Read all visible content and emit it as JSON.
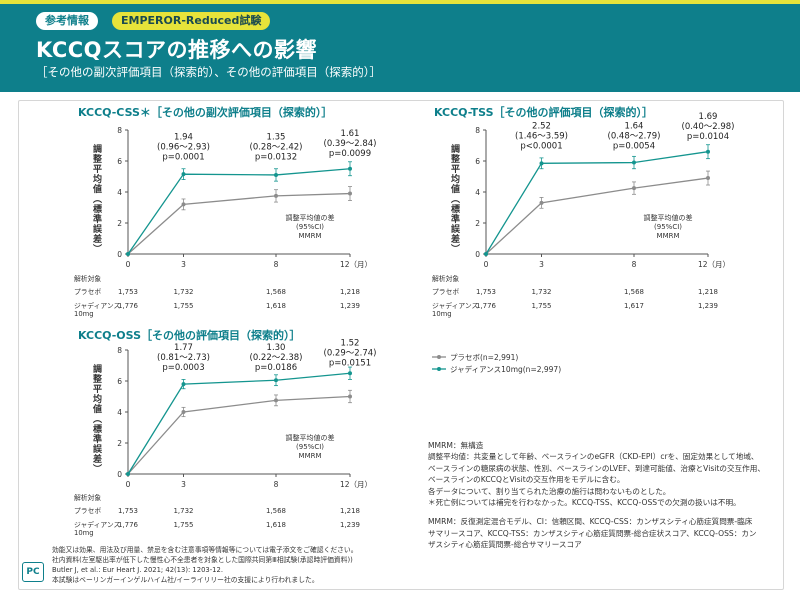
{
  "header": {
    "badge_info": "参考情報",
    "badge_trial": "EMPEROR-Reduced試験",
    "title": "KCCQスコアの推移への影響",
    "subtitle": "［その他の副次評価項目（探索的）、その他の評価項目（探索的）］"
  },
  "legend": {
    "placebo": "プラセボ(n=2,991)",
    "jardiance": "ジャディアンス10mg(n=2,997)"
  },
  "colors": {
    "teal": "#14958f",
    "gray": "#8c8c8c",
    "header": "#0e7f8b",
    "yellow": "#e6e33a"
  },
  "chart_data": [
    {
      "id": "css",
      "type": "line",
      "title": "KCCQ-CSS＊［その他の副次評価項目（探索的）］",
      "ylabel": "調整平均値（標準誤差）",
      "xlabel": "",
      "x": [
        0,
        3,
        8,
        12
      ],
      "x_tick_labels": [
        "0",
        "3",
        "8",
        "12（月）"
      ],
      "ylim": [
        0,
        8
      ],
      "y_ticks": [
        0,
        2,
        4,
        6,
        8
      ],
      "series": [
        {
          "name": "プラセボ",
          "values": [
            0,
            3.2,
            3.75,
            3.9
          ],
          "se": [
            0,
            0.35,
            0.4,
            0.45
          ]
        },
        {
          "name": "ジャディアンス10mg",
          "values": [
            0,
            5.15,
            5.1,
            5.5
          ],
          "se": [
            0,
            0.35,
            0.4,
            0.45
          ]
        }
      ],
      "annotations": [
        {
          "x": 3,
          "y": 6.5,
          "lines": [
            "1.94",
            "(0.96～2.93)",
            "p=0.0001"
          ]
        },
        {
          "x": 8,
          "y": 6.5,
          "lines": [
            "1.35",
            "(0.28～2.42)",
            "p=0.0132"
          ]
        },
        {
          "x": 12,
          "y": 6.7,
          "lines": [
            "1.61",
            "(0.39～2.84)",
            "p=0.0099"
          ]
        }
      ],
      "method_note": [
        "調整平均値の差",
        "(95%CI)",
        "MMRM"
      ],
      "analysis_label": "解析対象",
      "n_rows": [
        {
          "label": [
            "プラセボ"
          ],
          "values": [
            "1,753",
            "1,732",
            "1,568",
            "1,218"
          ]
        },
        {
          "label": [
            "ジャディアンス",
            "10mg"
          ],
          "values": [
            "1,776",
            "1,755",
            "1,618",
            "1,239"
          ]
        }
      ]
    },
    {
      "id": "tss",
      "type": "line",
      "title": "KCCQ-TSS［その他の評価項目（探索的）］",
      "ylabel": "調整平均値（標準誤差）",
      "xlabel": "",
      "x": [
        0,
        3,
        8,
        12
      ],
      "x_tick_labels": [
        "0",
        "3",
        "8",
        "12（月）"
      ],
      "ylim": [
        0,
        8
      ],
      "y_ticks": [
        0,
        2,
        4,
        6,
        8
      ],
      "series": [
        {
          "name": "プラセボ",
          "values": [
            0,
            3.3,
            4.25,
            4.9
          ],
          "se": [
            0,
            0.35,
            0.4,
            0.45
          ]
        },
        {
          "name": "ジャディアンス10mg",
          "values": [
            0,
            5.85,
            5.9,
            6.6
          ],
          "se": [
            0,
            0.35,
            0.4,
            0.45
          ]
        }
      ],
      "annotations": [
        {
          "x": 3,
          "y": 7.2,
          "lines": [
            "2.52",
            "(1.46～3.59)",
            "p<0.0001"
          ]
        },
        {
          "x": 8,
          "y": 7.2,
          "lines": [
            "1.64",
            "(0.48～2.79)",
            "p=0.0054"
          ]
        },
        {
          "x": 12,
          "y": 7.8,
          "lines": [
            "1.69",
            "(0.40～2.98)",
            "p=0.0104"
          ]
        }
      ],
      "method_note": [
        "調整平均値の差",
        "(95%CI)",
        "MMRM"
      ],
      "analysis_label": "解析対象",
      "n_rows": [
        {
          "label": [
            "プラセボ"
          ],
          "values": [
            "1,753",
            "1,732",
            "1,568",
            "1,218"
          ]
        },
        {
          "label": [
            "ジャディアンス",
            "10mg"
          ],
          "values": [
            "1,776",
            "1,755",
            "1,617",
            "1,239"
          ]
        }
      ]
    },
    {
      "id": "oss",
      "type": "line",
      "title": "KCCQ-OSS［その他の評価項目（探索的）］",
      "ylabel": "調整平均値（標準誤差）",
      "xlabel": "",
      "x": [
        0,
        3,
        8,
        12
      ],
      "x_tick_labels": [
        "0",
        "3",
        "8",
        "12（月）"
      ],
      "ylim": [
        0,
        8
      ],
      "y_ticks": [
        0,
        2,
        4,
        6,
        8
      ],
      "series": [
        {
          "name": "プラセボ",
          "values": [
            0,
            4.0,
            4.75,
            5.0
          ],
          "se": [
            0,
            0.3,
            0.35,
            0.4
          ]
        },
        {
          "name": "ジャディアンス10mg",
          "values": [
            0,
            5.8,
            6.05,
            6.5
          ],
          "se": [
            0,
            0.3,
            0.35,
            0.4
          ]
        }
      ],
      "annotations": [
        {
          "x": 3,
          "y": 7.1,
          "lines": [
            "1.77",
            "(0.81～2.73)",
            "p=0.0003"
          ]
        },
        {
          "x": 8,
          "y": 7.1,
          "lines": [
            "1.30",
            "(0.22～2.38)",
            "p=0.0186"
          ]
        },
        {
          "x": 12,
          "y": 7.4,
          "lines": [
            "1.52",
            "(0.29～2.74)",
            "p=0.0151"
          ]
        }
      ],
      "method_note": [
        "調整平均値の差",
        "(95%CI)",
        "MMRM"
      ],
      "analysis_label": "解析対象",
      "n_rows": [
        {
          "label": [
            "プラセボ"
          ],
          "values": [
            "1,753",
            "1,732",
            "1,568",
            "1,218"
          ]
        },
        {
          "label": [
            "ジャディアンス",
            "10mg"
          ],
          "values": [
            "1,776",
            "1,755",
            "1,618",
            "1,239"
          ]
        }
      ]
    }
  ],
  "notes": {
    "mmrm": "MMRM：無構造",
    "line1": "調整平均値：共変量として年齢、ベースラインのeGFR（CKD-EPI）crを、固定効果として地域、",
    "line2": "ベースラインの糖尿病の状態、性別、ベースラインのLVEF、到達可能値、治療とVisitの交互作用、",
    "line3": "ベースラインのKCCQとVisitの交互作用をモデルに含む。",
    "line4": "各データについて、割り当てられた治療の施行は問わないものとした。",
    "line5": "＊死亡例については補完を行わなかった。KCCQ-TSS、KCCQ-OSSでの欠測の扱いは不明。",
    "abbr1": "MMRM：反復測定混合モデル、CI：信頼区間、KCCQ-CSS：カンザスシティ心筋症質問票-臨床",
    "abbr2": "サマリースコア、KCCQ-TSS：カンザスシティ心筋症質問票-総合症状スコア、KCCQ-OSS：カン",
    "abbr3": "ザスシティ心筋症質問票-総合サマリースコア"
  },
  "footer": {
    "line1": "効能又は効果、用法及び用量、禁忌を含む注意事項等情報等については電子添文をご確認ください。",
    "line2": "社内資料(左室駆出率が低下した慢性心不全患者を対象とした国際共同第Ⅲ相試験(承認時評価資料))",
    "line3": "Butler J, et al.: Eur Heart J. 2021; 42(13): 1203-12.",
    "line4": "本試験はベーリンガーインゲルハイム社/イーライリリー社の支援により行われました。",
    "logo": "PC"
  }
}
